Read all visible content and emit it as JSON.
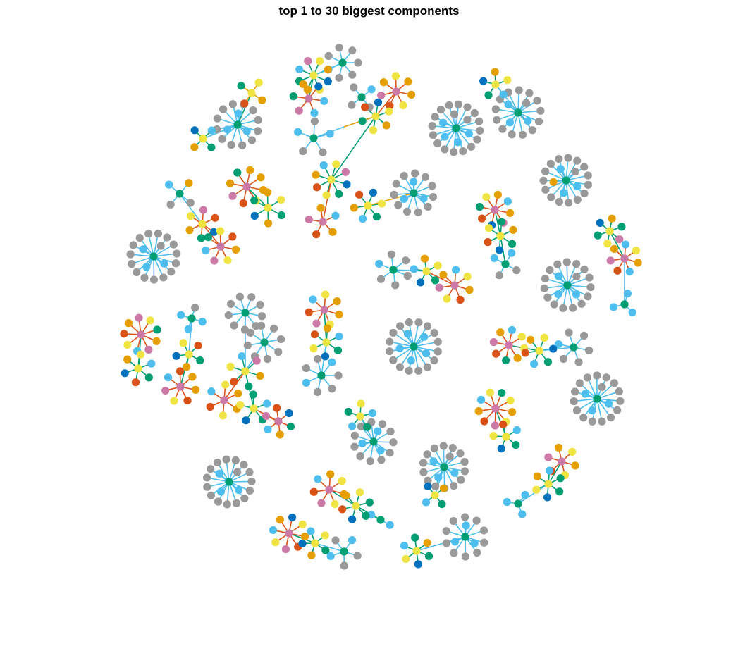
{
  "title": "top 1 to 30 biggest components",
  "colors": {
    "gray": "#999999",
    "lightblue": "#4DBEEE",
    "green": "#009E73",
    "yellow": "#F0E442",
    "orange": "#E69F00",
    "vermillion": "#D95319",
    "pink": "#CC79A7",
    "blue": "#0072BD"
  },
  "component_count": 30
}
